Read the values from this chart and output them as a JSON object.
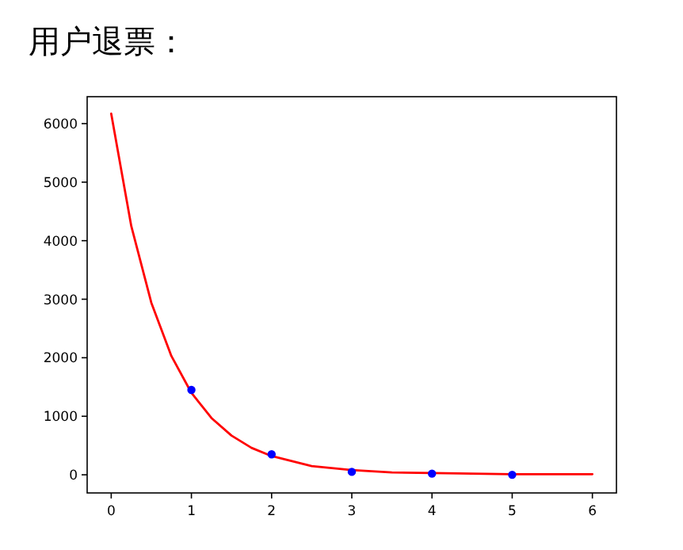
{
  "chart_data": {
    "type": "line",
    "title": "用户退票：",
    "xlim": [
      -0.3,
      6.3
    ],
    "xticks": [
      0,
      1,
      2,
      3,
      4,
      5,
      6
    ],
    "ylim": [
      -310,
      6460
    ],
    "yticks": [
      0,
      1000,
      2000,
      3000,
      4000,
      5000,
      6000
    ],
    "grid": false,
    "series": [
      {
        "color": "#ff0000",
        "line_style": "solid",
        "x": [
          0,
          0.25,
          0.5,
          0.75,
          1,
          1.25,
          1.5,
          1.75,
          2,
          2.5,
          3,
          3.5,
          4,
          5,
          6
        ],
        "values": [
          6170,
          4250,
          2940,
          2030,
          1400,
          970,
          670,
          460,
          320,
          150,
          80,
          40,
          30,
          10,
          10
        ]
      },
      {
        "type": "scatter",
        "color": "#0000ff",
        "marker": "circle",
        "x": [
          1,
          2,
          3,
          4,
          5
        ],
        "values": [
          1450,
          350,
          50,
          20,
          0
        ]
      }
    ]
  }
}
